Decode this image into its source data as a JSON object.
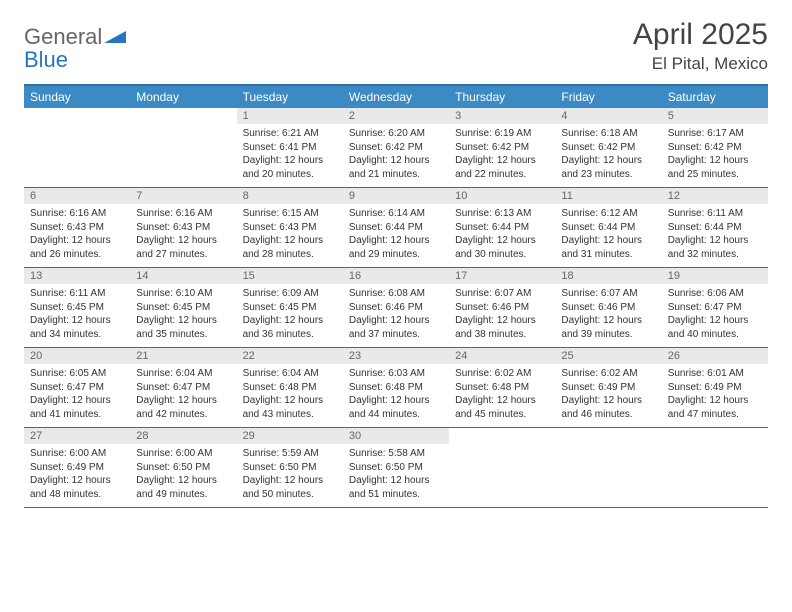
{
  "brand": {
    "line1": "General",
    "line2": "Blue"
  },
  "title": {
    "month": "April 2025",
    "location": "El Pital, Mexico"
  },
  "day_names": [
    "Sunday",
    "Monday",
    "Tuesday",
    "Wednesday",
    "Thursday",
    "Friday",
    "Saturday"
  ],
  "colors": {
    "header_bg": "#3b8ac4",
    "header_text": "#ffffff",
    "rule": "#2d6fa8",
    "num_bg": "#e8e9ea",
    "text": "#333333",
    "brand_blue": "#2776bb"
  },
  "layout": {
    "cols": 7,
    "rows": 5,
    "cell_min_h": 78,
    "font_body": 10,
    "font_head": 12
  },
  "weeks": [
    [
      {
        "n": "",
        "sr": "",
        "ss": "",
        "dl": ""
      },
      {
        "n": "",
        "sr": "",
        "ss": "",
        "dl": ""
      },
      {
        "n": "1",
        "sr": "Sunrise: 6:21 AM",
        "ss": "Sunset: 6:41 PM",
        "dl": "Daylight: 12 hours and 20 minutes."
      },
      {
        "n": "2",
        "sr": "Sunrise: 6:20 AM",
        "ss": "Sunset: 6:42 PM",
        "dl": "Daylight: 12 hours and 21 minutes."
      },
      {
        "n": "3",
        "sr": "Sunrise: 6:19 AM",
        "ss": "Sunset: 6:42 PM",
        "dl": "Daylight: 12 hours and 22 minutes."
      },
      {
        "n": "4",
        "sr": "Sunrise: 6:18 AM",
        "ss": "Sunset: 6:42 PM",
        "dl": "Daylight: 12 hours and 23 minutes."
      },
      {
        "n": "5",
        "sr": "Sunrise: 6:17 AM",
        "ss": "Sunset: 6:42 PM",
        "dl": "Daylight: 12 hours and 25 minutes."
      }
    ],
    [
      {
        "n": "6",
        "sr": "Sunrise: 6:16 AM",
        "ss": "Sunset: 6:43 PM",
        "dl": "Daylight: 12 hours and 26 minutes."
      },
      {
        "n": "7",
        "sr": "Sunrise: 6:16 AM",
        "ss": "Sunset: 6:43 PM",
        "dl": "Daylight: 12 hours and 27 minutes."
      },
      {
        "n": "8",
        "sr": "Sunrise: 6:15 AM",
        "ss": "Sunset: 6:43 PM",
        "dl": "Daylight: 12 hours and 28 minutes."
      },
      {
        "n": "9",
        "sr": "Sunrise: 6:14 AM",
        "ss": "Sunset: 6:44 PM",
        "dl": "Daylight: 12 hours and 29 minutes."
      },
      {
        "n": "10",
        "sr": "Sunrise: 6:13 AM",
        "ss": "Sunset: 6:44 PM",
        "dl": "Daylight: 12 hours and 30 minutes."
      },
      {
        "n": "11",
        "sr": "Sunrise: 6:12 AM",
        "ss": "Sunset: 6:44 PM",
        "dl": "Daylight: 12 hours and 31 minutes."
      },
      {
        "n": "12",
        "sr": "Sunrise: 6:11 AM",
        "ss": "Sunset: 6:44 PM",
        "dl": "Daylight: 12 hours and 32 minutes."
      }
    ],
    [
      {
        "n": "13",
        "sr": "Sunrise: 6:11 AM",
        "ss": "Sunset: 6:45 PM",
        "dl": "Daylight: 12 hours and 34 minutes."
      },
      {
        "n": "14",
        "sr": "Sunrise: 6:10 AM",
        "ss": "Sunset: 6:45 PM",
        "dl": "Daylight: 12 hours and 35 minutes."
      },
      {
        "n": "15",
        "sr": "Sunrise: 6:09 AM",
        "ss": "Sunset: 6:45 PM",
        "dl": "Daylight: 12 hours and 36 minutes."
      },
      {
        "n": "16",
        "sr": "Sunrise: 6:08 AM",
        "ss": "Sunset: 6:46 PM",
        "dl": "Daylight: 12 hours and 37 minutes."
      },
      {
        "n": "17",
        "sr": "Sunrise: 6:07 AM",
        "ss": "Sunset: 6:46 PM",
        "dl": "Daylight: 12 hours and 38 minutes."
      },
      {
        "n": "18",
        "sr": "Sunrise: 6:07 AM",
        "ss": "Sunset: 6:46 PM",
        "dl": "Daylight: 12 hours and 39 minutes."
      },
      {
        "n": "19",
        "sr": "Sunrise: 6:06 AM",
        "ss": "Sunset: 6:47 PM",
        "dl": "Daylight: 12 hours and 40 minutes."
      }
    ],
    [
      {
        "n": "20",
        "sr": "Sunrise: 6:05 AM",
        "ss": "Sunset: 6:47 PM",
        "dl": "Daylight: 12 hours and 41 minutes."
      },
      {
        "n": "21",
        "sr": "Sunrise: 6:04 AM",
        "ss": "Sunset: 6:47 PM",
        "dl": "Daylight: 12 hours and 42 minutes."
      },
      {
        "n": "22",
        "sr": "Sunrise: 6:04 AM",
        "ss": "Sunset: 6:48 PM",
        "dl": "Daylight: 12 hours and 43 minutes."
      },
      {
        "n": "23",
        "sr": "Sunrise: 6:03 AM",
        "ss": "Sunset: 6:48 PM",
        "dl": "Daylight: 12 hours and 44 minutes."
      },
      {
        "n": "24",
        "sr": "Sunrise: 6:02 AM",
        "ss": "Sunset: 6:48 PM",
        "dl": "Daylight: 12 hours and 45 minutes."
      },
      {
        "n": "25",
        "sr": "Sunrise: 6:02 AM",
        "ss": "Sunset: 6:49 PM",
        "dl": "Daylight: 12 hours and 46 minutes."
      },
      {
        "n": "26",
        "sr": "Sunrise: 6:01 AM",
        "ss": "Sunset: 6:49 PM",
        "dl": "Daylight: 12 hours and 47 minutes."
      }
    ],
    [
      {
        "n": "27",
        "sr": "Sunrise: 6:00 AM",
        "ss": "Sunset: 6:49 PM",
        "dl": "Daylight: 12 hours and 48 minutes."
      },
      {
        "n": "28",
        "sr": "Sunrise: 6:00 AM",
        "ss": "Sunset: 6:50 PM",
        "dl": "Daylight: 12 hours and 49 minutes."
      },
      {
        "n": "29",
        "sr": "Sunrise: 5:59 AM",
        "ss": "Sunset: 6:50 PM",
        "dl": "Daylight: 12 hours and 50 minutes."
      },
      {
        "n": "30",
        "sr": "Sunrise: 5:58 AM",
        "ss": "Sunset: 6:50 PM",
        "dl": "Daylight: 12 hours and 51 minutes."
      },
      {
        "n": "",
        "sr": "",
        "ss": "",
        "dl": ""
      },
      {
        "n": "",
        "sr": "",
        "ss": "",
        "dl": ""
      },
      {
        "n": "",
        "sr": "",
        "ss": "",
        "dl": ""
      }
    ]
  ]
}
